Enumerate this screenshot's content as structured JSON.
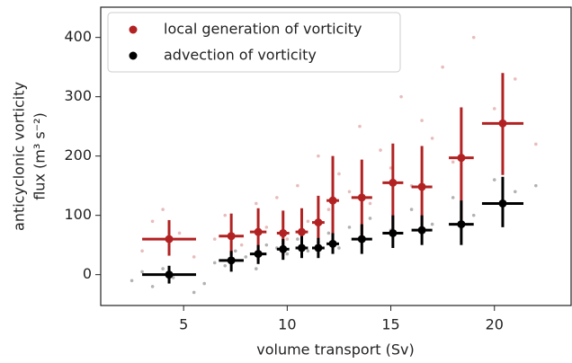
{
  "chart_data": {
    "type": "errorbar",
    "x_label": "volume transport (Sv)",
    "y_label": [
      "anticyclonic vorticity",
      "flux (m³ s⁻²)"
    ],
    "xlim": [
      1,
      23.7
    ],
    "ylim": [
      -52,
      451
    ],
    "xticks": [
      5,
      10,
      15,
      20
    ],
    "yticks": [
      0,
      100,
      200,
      300,
      400
    ],
    "legend": "upper left",
    "series": [
      {
        "name": "local generation of vorticity",
        "color": "#b22222",
        "x": [
          4.3,
          7.3,
          8.6,
          9.8,
          10.7,
          11.5,
          12.2,
          13.6,
          15.1,
          16.5,
          18.4,
          20.4
        ],
        "values": [
          60,
          65,
          72,
          70,
          72,
          88,
          125,
          130,
          155,
          148,
          197,
          255
        ],
        "xerr": [
          1.3,
          0.6,
          0.4,
          0.3,
          0.3,
          0.3,
          0.3,
          0.5,
          0.5,
          0.5,
          0.6,
          1.0
        ],
        "ylow": [
          32,
          32,
          24,
          32,
          40,
          47,
          47,
          55,
          73,
          77,
          77,
          168
        ],
        "yhigh": [
          92,
          103,
          112,
          108,
          112,
          133,
          200,
          194,
          221,
          217,
          282,
          340
        ],
        "cloud_x": [
          3,
          3.5,
          4,
          4.8,
          5.5,
          6.5,
          7,
          7.8,
          8.5,
          9,
          9.5,
          10,
          10.5,
          11,
          11.5,
          12,
          12.5,
          13,
          13.5,
          14,
          14.5,
          15,
          15.5,
          16,
          16.5,
          17,
          17.5,
          18,
          19,
          20,
          21,
          22
        ],
        "cloud_y": [
          40,
          90,
          110,
          70,
          30,
          60,
          100,
          50,
          120,
          80,
          130,
          60,
          150,
          90,
          200,
          110,
          170,
          140,
          250,
          120,
          210,
          180,
          300,
          150,
          260,
          230,
          350,
          190,
          400,
          280,
          330,
          220
        ]
      },
      {
        "name": "advection of vorticity",
        "color": "#000000",
        "x": [
          4.3,
          7.3,
          8.6,
          9.8,
          10.7,
          11.5,
          12.2,
          13.6,
          15.1,
          16.5,
          18.4,
          20.4
        ],
        "values": [
          0,
          24,
          35,
          43,
          45,
          45,
          52,
          60,
          70,
          75,
          85,
          120
        ],
        "xerr": [
          1.3,
          0.6,
          0.4,
          0.3,
          0.3,
          0.3,
          0.3,
          0.5,
          0.5,
          0.5,
          0.6,
          1.0
        ],
        "ylow": [
          -15,
          5,
          18,
          25,
          28,
          28,
          35,
          35,
          45,
          50,
          50,
          80
        ],
        "yhigh": [
          15,
          40,
          50,
          60,
          65,
          62,
          70,
          85,
          100,
          100,
          125,
          165
        ],
        "cloud_x": [
          2.5,
          3,
          3.5,
          4,
          4.5,
          5.5,
          6,
          6.5,
          7,
          7.5,
          8,
          8.5,
          9,
          9.5,
          10,
          10.5,
          11,
          11.5,
          12,
          12.5,
          13,
          13.5,
          14,
          15,
          16,
          17,
          18,
          19,
          20,
          21,
          22
        ],
        "cloud_y": [
          -10,
          5,
          -20,
          10,
          -5,
          -30,
          -15,
          20,
          15,
          40,
          30,
          10,
          50,
          45,
          35,
          60,
          40,
          55,
          70,
          45,
          80,
          60,
          95,
          75,
          110,
          85,
          130,
          100,
          160,
          140,
          150
        ]
      }
    ]
  }
}
